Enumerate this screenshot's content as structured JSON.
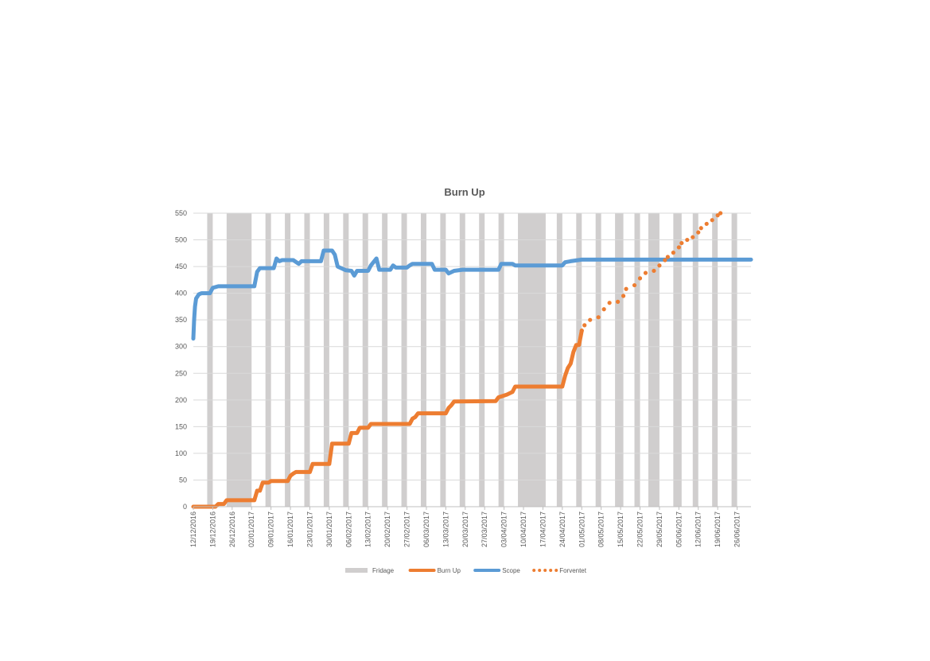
{
  "chart_data": {
    "type": "line",
    "title": "Burn Up",
    "xlabel": "",
    "ylabel": "",
    "ylim": [
      0,
      550
    ],
    "yticks": [
      0,
      50,
      100,
      150,
      200,
      250,
      300,
      350,
      400,
      450,
      500,
      550
    ],
    "xlim": [
      "2016-12-12",
      "2017-07-01"
    ],
    "grid": "horizontal",
    "legend_position": "bottom",
    "x_tick_labels": [
      "12/12/2016",
      "19/12/2016",
      "26/12/2016",
      "02/01/2017",
      "09/01/2017",
      "16/01/2017",
      "23/01/2017",
      "30/01/2017",
      "06/02/2017",
      "13/02/2017",
      "20/02/2017",
      "27/02/2017",
      "06/03/2017",
      "13/03/2017",
      "20/03/2017",
      "27/03/2017",
      "03/04/2017",
      "10/04/2017",
      "17/04/2017",
      "24/04/2017",
      "01/05/2017",
      "08/05/2017",
      "15/05/2017",
      "22/05/2017",
      "29/05/2017",
      "05/06/2017",
      "12/06/2017",
      "19/06/2017",
      "26/06/2017"
    ],
    "series": [
      {
        "name": "Fridage",
        "kind": "bands",
        "color": "#d0cece",
        "ranges": [
          [
            "2016-12-17",
            "2016-12-19"
          ],
          [
            "2016-12-24",
            "2017-01-02"
          ],
          [
            "2017-01-07",
            "2017-01-09"
          ],
          [
            "2017-01-14",
            "2017-01-16"
          ],
          [
            "2017-01-21",
            "2017-01-23"
          ],
          [
            "2017-01-28",
            "2017-01-30"
          ],
          [
            "2017-02-04",
            "2017-02-06"
          ],
          [
            "2017-02-11",
            "2017-02-13"
          ],
          [
            "2017-02-18",
            "2017-02-20"
          ],
          [
            "2017-02-25",
            "2017-02-27"
          ],
          [
            "2017-03-04",
            "2017-03-06"
          ],
          [
            "2017-03-11",
            "2017-03-13"
          ],
          [
            "2017-03-18",
            "2017-03-20"
          ],
          [
            "2017-03-25",
            "2017-03-27"
          ],
          [
            "2017-04-01",
            "2017-04-03"
          ],
          [
            "2017-04-08",
            "2017-04-18"
          ],
          [
            "2017-04-22",
            "2017-04-24"
          ],
          [
            "2017-04-29",
            "2017-05-01"
          ],
          [
            "2017-05-06",
            "2017-05-08"
          ],
          [
            "2017-05-13",
            "2017-05-16"
          ],
          [
            "2017-05-20",
            "2017-05-22"
          ],
          [
            "2017-05-25",
            "2017-05-29"
          ],
          [
            "2017-06-03",
            "2017-06-06"
          ],
          [
            "2017-06-10",
            "2017-06-12"
          ],
          [
            "2017-06-17",
            "2017-06-19"
          ],
          [
            "2017-06-24",
            "2017-06-26"
          ]
        ]
      },
      {
        "name": "Burn Up",
        "kind": "line",
        "color": "#ed7d31",
        "points": [
          [
            "2016-12-12",
            0
          ],
          [
            "2016-12-20",
            0
          ],
          [
            "2016-12-21",
            5
          ],
          [
            "2016-12-23",
            5
          ],
          [
            "2016-12-24",
            12
          ],
          [
            "2017-01-03",
            12
          ],
          [
            "2017-01-04",
            30
          ],
          [
            "2017-01-05",
            30
          ],
          [
            "2017-01-06",
            45
          ],
          [
            "2017-01-08",
            45
          ],
          [
            "2017-01-09",
            48
          ],
          [
            "2017-01-15",
            48
          ],
          [
            "2017-01-16",
            58
          ],
          [
            "2017-01-17",
            62
          ],
          [
            "2017-01-18",
            65
          ],
          [
            "2017-01-23",
            65
          ],
          [
            "2017-01-24",
            80
          ],
          [
            "2017-01-30",
            80
          ],
          [
            "2017-01-31",
            118
          ],
          [
            "2017-02-06",
            118
          ],
          [
            "2017-02-07",
            138
          ],
          [
            "2017-02-09",
            138
          ],
          [
            "2017-02-10",
            148
          ],
          [
            "2017-02-13",
            148
          ],
          [
            "2017-02-14",
            155
          ],
          [
            "2017-02-28",
            155
          ],
          [
            "2017-03-01",
            165
          ],
          [
            "2017-03-02",
            168
          ],
          [
            "2017-03-03",
            175
          ],
          [
            "2017-03-13",
            175
          ],
          [
            "2017-03-14",
            185
          ],
          [
            "2017-03-15",
            190
          ],
          [
            "2017-03-16",
            197
          ],
          [
            "2017-03-31",
            198
          ],
          [
            "2017-04-01",
            205
          ],
          [
            "2017-04-04",
            210
          ],
          [
            "2017-04-06",
            215
          ],
          [
            "2017-04-07",
            225
          ],
          [
            "2017-04-24",
            225
          ],
          [
            "2017-04-25",
            245
          ],
          [
            "2017-04-26",
            260
          ],
          [
            "2017-04-27",
            268
          ],
          [
            "2017-04-28",
            290
          ],
          [
            "2017-04-29",
            303
          ],
          [
            "2017-04-30",
            303
          ],
          [
            "2017-05-01",
            330
          ]
        ]
      },
      {
        "name": "Scope",
        "kind": "line",
        "color": "#5b9bd5",
        "points": [
          [
            "2016-12-12",
            315
          ],
          [
            "2016-12-12.3",
            350
          ],
          [
            "2016-12-12.6",
            375
          ],
          [
            "2016-12-13",
            390
          ],
          [
            "2016-12-14",
            398
          ],
          [
            "2016-12-15",
            400
          ],
          [
            "2016-12-18",
            400
          ],
          [
            "2016-12-19",
            410
          ],
          [
            "2016-12-21",
            413
          ],
          [
            "2017-01-02",
            413
          ],
          [
            "2017-01-03",
            413
          ],
          [
            "2017-01-04",
            440
          ],
          [
            "2017-01-05",
            447
          ],
          [
            "2017-01-10",
            447
          ],
          [
            "2017-01-11",
            465
          ],
          [
            "2017-01-12",
            460
          ],
          [
            "2017-01-13",
            462
          ],
          [
            "2017-01-17",
            462
          ],
          [
            "2017-01-19",
            455
          ],
          [
            "2017-01-20",
            460
          ],
          [
            "2017-01-27",
            460
          ],
          [
            "2017-01-28",
            480
          ],
          [
            "2017-01-31",
            480
          ],
          [
            "2017-02-01",
            472
          ],
          [
            "2017-02-02",
            450
          ],
          [
            "2017-02-05",
            443
          ],
          [
            "2017-02-07",
            442
          ],
          [
            "2017-02-08",
            433
          ],
          [
            "2017-02-09",
            442
          ],
          [
            "2017-02-13",
            442
          ],
          [
            "2017-02-14",
            452
          ],
          [
            "2017-02-16",
            465
          ],
          [
            "2017-02-17",
            444
          ],
          [
            "2017-02-21",
            444
          ],
          [
            "2017-02-22",
            452
          ],
          [
            "2017-02-23",
            448
          ],
          [
            "2017-02-27",
            448
          ],
          [
            "2017-02-28",
            452
          ],
          [
            "2017-03-01",
            455
          ],
          [
            "2017-03-08",
            455
          ],
          [
            "2017-03-09",
            444
          ],
          [
            "2017-03-13",
            444
          ],
          [
            "2017-03-14",
            437
          ],
          [
            "2017-03-16",
            442
          ],
          [
            "2017-03-19",
            444
          ],
          [
            "2017-04-01",
            444
          ],
          [
            "2017-04-02",
            455
          ],
          [
            "2017-04-06",
            455
          ],
          [
            "2017-04-07",
            452
          ],
          [
            "2017-04-23",
            452
          ],
          [
            "2017-04-24",
            452
          ],
          [
            "2017-04-25",
            458
          ],
          [
            "2017-04-27",
            460
          ],
          [
            "2017-05-01",
            463
          ],
          [
            "2017-07-01",
            463
          ]
        ]
      },
      {
        "name": "Forventet",
        "kind": "dotted",
        "color": "#ed7d31",
        "points": [
          [
            "2017-05-01",
            330
          ],
          [
            "2017-05-02",
            340
          ],
          [
            "2017-05-04",
            350
          ],
          [
            "2017-05-07",
            355
          ],
          [
            "2017-05-09",
            370
          ],
          [
            "2017-05-11",
            382
          ],
          [
            "2017-05-14",
            384
          ],
          [
            "2017-05-16",
            395
          ],
          [
            "2017-05-17",
            408
          ],
          [
            "2017-05-20",
            415
          ],
          [
            "2017-05-22",
            428
          ],
          [
            "2017-05-24",
            438
          ],
          [
            "2017-05-27",
            442
          ],
          [
            "2017-05-29",
            452
          ],
          [
            "2017-05-31",
            462
          ],
          [
            "2017-06-01",
            468
          ],
          [
            "2017-06-03",
            476
          ],
          [
            "2017-06-05",
            486
          ],
          [
            "2017-06-06",
            494
          ],
          [
            "2017-06-08",
            500
          ],
          [
            "2017-06-10",
            505
          ],
          [
            "2017-06-12",
            514
          ],
          [
            "2017-06-13",
            522
          ],
          [
            "2017-06-15",
            530
          ],
          [
            "2017-06-17",
            537
          ],
          [
            "2017-06-19",
            546
          ],
          [
            "2017-06-20",
            550
          ]
        ]
      }
    ]
  }
}
